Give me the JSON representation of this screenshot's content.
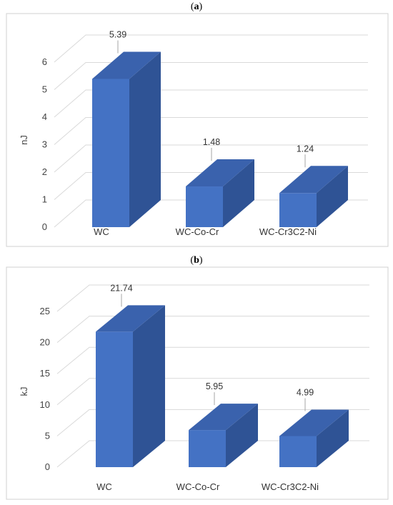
{
  "chart_data": [
    {
      "type": "bar",
      "panel_label": "a",
      "categories": [
        "WC",
        "WC-Co-Cr",
        "WC-Cr3C2-Ni"
      ],
      "values": [
        5.39,
        1.48,
        1.24
      ],
      "data_labels": [
        "5.39",
        "1.48",
        "1.24"
      ],
      "ylabel": "nJ",
      "ylim": [
        0,
        6
      ],
      "yticks": [
        0,
        1,
        2,
        3,
        4,
        5,
        6
      ],
      "grid": true,
      "three_d": true,
      "bar_color": "#4472c4",
      "bar_side_color": "#2f5395",
      "bar_top_color": "#3a62ad"
    },
    {
      "type": "bar",
      "panel_label": "b",
      "categories": [
        "WC",
        "WC-Co-Cr",
        "WC-Cr3C2-Ni"
      ],
      "values": [
        21.74,
        5.95,
        4.99
      ],
      "data_labels": [
        "21.74",
        "5.95",
        "4.99"
      ],
      "ylabel": "kJ",
      "ylim": [
        0,
        25
      ],
      "yticks": [
        0,
        5,
        10,
        15,
        20,
        25
      ],
      "grid": true,
      "three_d": true,
      "bar_color": "#4472c4",
      "bar_side_color": "#2f5395",
      "bar_top_color": "#3a62ad"
    }
  ]
}
